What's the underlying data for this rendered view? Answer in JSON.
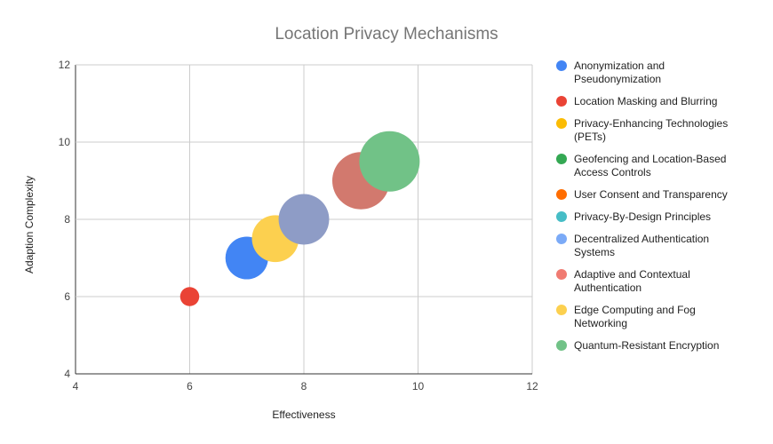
{
  "chart_data": {
    "type": "bubble",
    "title": "Location Privacy Mechanisms",
    "xlabel": "Effectiveness",
    "ylabel": "Adaption Complexity",
    "xlim": [
      4,
      12
    ],
    "ylim": [
      4,
      12
    ],
    "xticks": [
      4,
      6,
      8,
      10,
      12
    ],
    "yticks": [
      4,
      6,
      8,
      10,
      12
    ],
    "grid": true,
    "legend_position": "right",
    "legend": [
      {
        "name": "Anonymization and Pseudonymization",
        "lines": [
          "Anonymization and",
          "Pseudonymization"
        ],
        "color": "#4285f4"
      },
      {
        "name": "Location Masking and Blurring",
        "lines": [
          "Location Masking and Blurring"
        ],
        "color": "#ea4335"
      },
      {
        "name": "Privacy-Enhancing Technologies (PETs)",
        "lines": [
          "Privacy-Enhancing Technologies",
          "(PETs)"
        ],
        "color": "#fbbc04"
      },
      {
        "name": "Geofencing and Location-Based Access Controls",
        "lines": [
          "Geofencing and Location-Based",
          "Access Controls"
        ],
        "color": "#34a853"
      },
      {
        "name": "User Consent and Transparency",
        "lines": [
          "User Consent and Transparency"
        ],
        "color": "#ff6d01"
      },
      {
        "name": "Privacy-By-Design Principles",
        "lines": [
          "Privacy-By-Design Principles"
        ],
        "color": "#46bdc6"
      },
      {
        "name": "Decentralized Authentication Systems",
        "lines": [
          "Decentralized Authentication",
          "Systems"
        ],
        "color": "#7baaf7"
      },
      {
        "name": "Adaptive and Contextual Authentication",
        "lines": [
          "Adaptive and Contextual",
          "Authentication"
        ],
        "color": "#f07b72"
      },
      {
        "name": "Edge Computing and Fog Networking",
        "lines": [
          "Edge Computing and Fog",
          "Networking"
        ],
        "color": "#fcd04f"
      },
      {
        "name": "Quantum-Resistant Encryption",
        "lines": [
          "Quantum-Resistant Encryption"
        ],
        "color": "#71c287"
      }
    ],
    "points": [
      {
        "series": "Location Masking and Blurring",
        "x": 6,
        "y": 6,
        "size": 1,
        "color": "#ea4335"
      },
      {
        "series": "Anonymization and Pseudonymization",
        "x": 7,
        "y": 7,
        "size": 5,
        "color": "#4285f4"
      },
      {
        "series": "Privacy-Enhancing Technologies (PETs)",
        "x": 7.5,
        "y": 7.5,
        "size": 6,
        "color": "#fcd04f"
      },
      {
        "series": "Decentralized Authentication Systems",
        "x": 8,
        "y": 8,
        "size": 7,
        "color": "#8e9cc6"
      },
      {
        "series": "Adaptive and Contextual Authentication",
        "x": 9,
        "y": 9,
        "size": 9,
        "color": "#d2796e"
      },
      {
        "series": "Quantum-Resistant Encryption",
        "x": 9.5,
        "y": 9.5,
        "size": 10,
        "color": "#71c287"
      }
    ]
  }
}
